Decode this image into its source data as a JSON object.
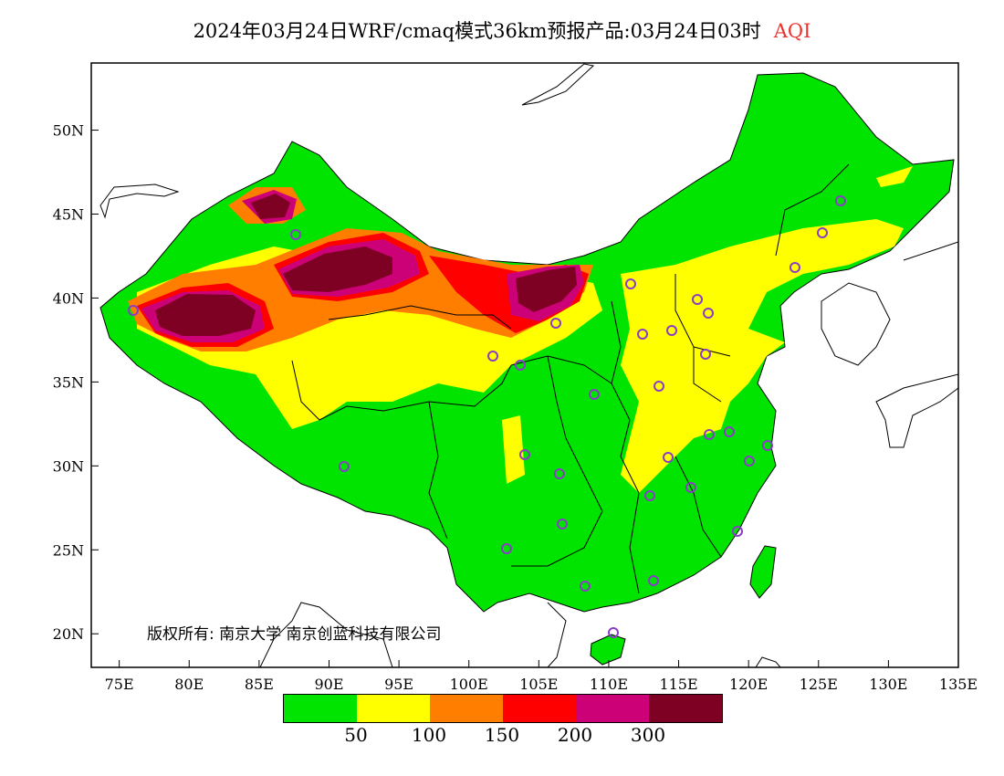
{
  "title": {
    "main": "2024年03月24日WRF/cmaq模式36km预报产品:03月24日03时",
    "variable": "AQI"
  },
  "copyright": "版权所有: 南京大学 南京创蓝科技有限公司",
  "axes": {
    "lon_labels": [
      "75E",
      "80E",
      "85E",
      "90E",
      "95E",
      "100E",
      "105E",
      "110E",
      "115E",
      "120E",
      "125E",
      "130E",
      "135E"
    ],
    "lat_labels": [
      "50N",
      "45N",
      "40N",
      "35N",
      "30N",
      "25N",
      "20N"
    ],
    "lon_range": [
      73,
      135
    ],
    "lat_range": [
      18,
      54
    ]
  },
  "colorbar": {
    "colors": [
      "#00e400",
      "#ffff00",
      "#ff7e00",
      "#ff0000",
      "#cc0077",
      "#7e0023"
    ],
    "labels": [
      "50",
      "100",
      "150",
      "200",
      "300"
    ]
  },
  "colors": {
    "boundary": "#000000",
    "station_marker": "#8a3cc8"
  }
}
